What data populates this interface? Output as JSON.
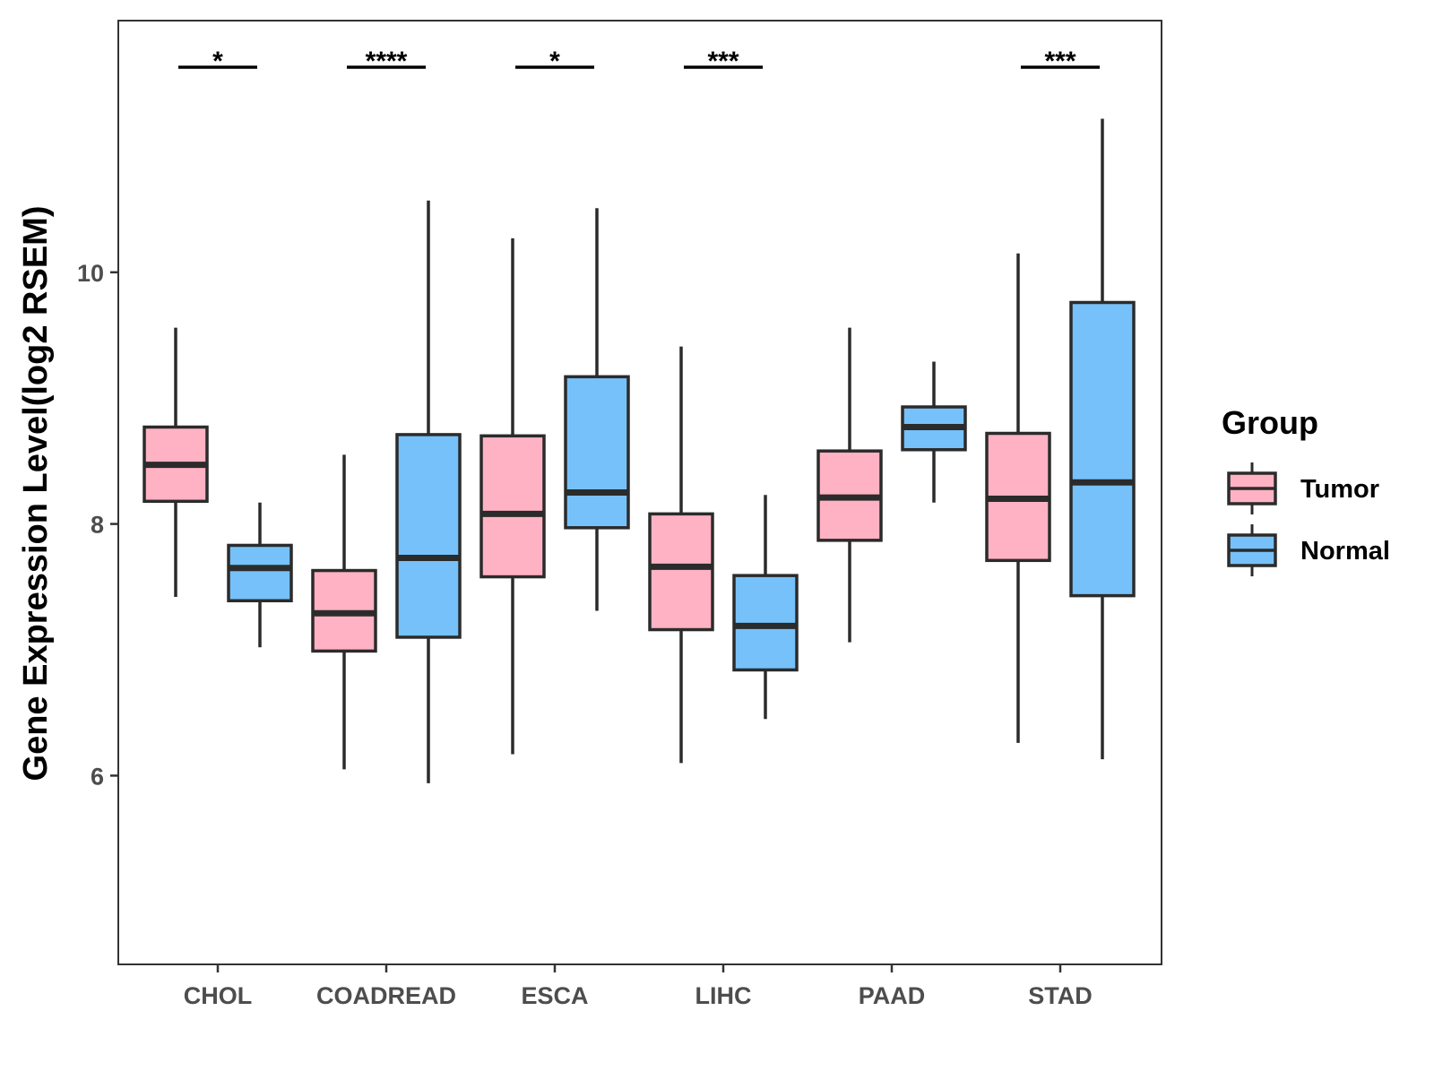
{
  "chart_data": {
    "type": "box",
    "ylabel": "Gene Expression Level(log2 RSEM)",
    "xlabel": "",
    "ylim": [
      4.5,
      12.0
    ],
    "yticks": [
      6,
      8,
      10
    ],
    "categories": [
      "CHOL",
      "COADREAD",
      "ESCA",
      "LIHC",
      "PAAD",
      "STAD"
    ],
    "legend": {
      "title": "Group",
      "position": "right",
      "entries": [
        "Tumor",
        "Normal"
      ]
    },
    "series": [
      {
        "name": "Tumor",
        "color": "#FFB2C4",
        "boxes": [
          {
            "category": "CHOL",
            "min": 7.42,
            "q1": 8.18,
            "median": 8.47,
            "q3": 8.77,
            "max": 9.56
          },
          {
            "category": "COADREAD",
            "min": 6.05,
            "q1": 6.99,
            "median": 7.29,
            "q3": 7.63,
            "max": 8.55
          },
          {
            "category": "ESCA",
            "min": 6.17,
            "q1": 7.58,
            "median": 8.08,
            "q3": 8.7,
            "max": 10.27
          },
          {
            "category": "LIHC",
            "min": 6.1,
            "q1": 7.16,
            "median": 7.66,
            "q3": 8.08,
            "max": 9.41
          },
          {
            "category": "PAAD",
            "min": 7.06,
            "q1": 7.87,
            "median": 8.21,
            "q3": 8.58,
            "max": 9.56
          },
          {
            "category": "STAD",
            "min": 6.26,
            "q1": 7.71,
            "median": 8.2,
            "q3": 8.72,
            "max": 10.15
          }
        ]
      },
      {
        "name": "Normal",
        "color": "#76C1F9",
        "boxes": [
          {
            "category": "CHOL",
            "min": 7.02,
            "q1": 7.39,
            "median": 7.65,
            "q3": 7.83,
            "max": 8.17
          },
          {
            "category": "COADREAD",
            "min": 5.94,
            "q1": 7.1,
            "median": 7.73,
            "q3": 8.71,
            "max": 10.57
          },
          {
            "category": "ESCA",
            "min": 7.31,
            "q1": 7.97,
            "median": 8.25,
            "q3": 9.17,
            "max": 10.51
          },
          {
            "category": "LIHC",
            "min": 6.45,
            "q1": 6.84,
            "median": 7.19,
            "q3": 7.59,
            "max": 8.23
          },
          {
            "category": "PAAD",
            "min": 8.17,
            "q1": 8.59,
            "median": 8.77,
            "q3": 8.93,
            "max": 9.29
          },
          {
            "category": "STAD",
            "min": 6.13,
            "q1": 7.43,
            "median": 8.33,
            "q3": 9.76,
            "max": 11.22
          }
        ]
      }
    ],
    "significance": [
      {
        "category": "CHOL",
        "label": "*"
      },
      {
        "category": "COADREAD",
        "label": "****"
      },
      {
        "category": "ESCA",
        "label": "*"
      },
      {
        "category": "LIHC",
        "label": "***"
      },
      {
        "category": "PAAD",
        "label": ""
      },
      {
        "category": "STAD",
        "label": "***"
      }
    ],
    "colors": {
      "tumor": "#FFB2C4",
      "normal": "#76C1F9",
      "outline": "#2b2b2b"
    }
  }
}
